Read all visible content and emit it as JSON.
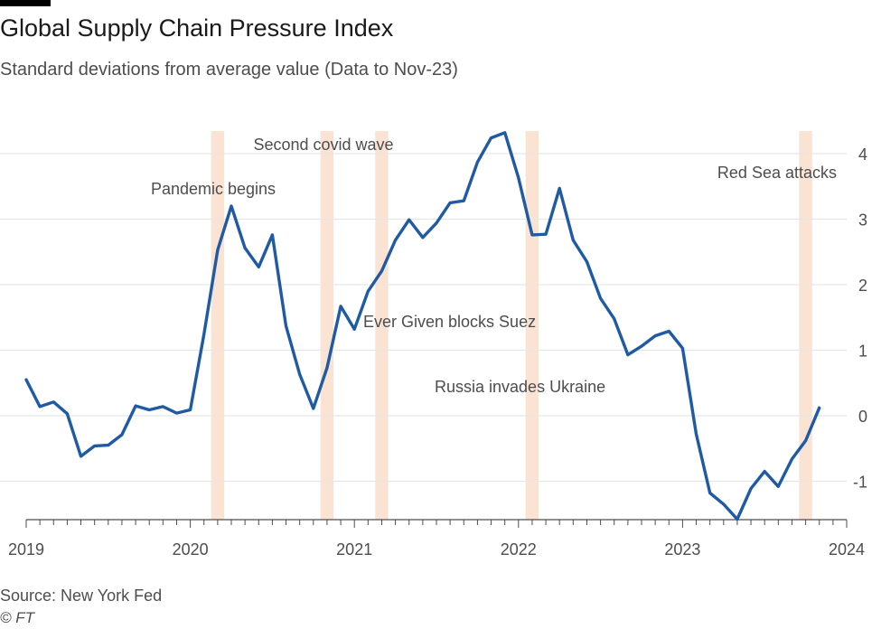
{
  "header": {
    "title": "Global Supply Chain Pressure Index",
    "subtitle": "Standard deviations from average value (Data to Nov-23)"
  },
  "footer": {
    "source": "Source: New York Fed",
    "credit": "© FT"
  },
  "colors": {
    "line": "#1f5aa5",
    "band": "#fbe3d3",
    "grid": "#e6e6e6",
    "axis": "#4d4d4d",
    "text": "#4d4d4d"
  },
  "chart_data": {
    "type": "line",
    "title": "Global Supply Chain Pressure Index",
    "subtitle": "Standard deviations from average value (Data to Nov-23)",
    "xlabel": "",
    "ylabel": "Standard deviations from average value",
    "x_start": "2019-01",
    "xlim": [
      2019,
      2024
    ],
    "ylim": [
      -1.6,
      4.4
    ],
    "y_ticks": [
      -1,
      0,
      1,
      2,
      3,
      4
    ],
    "y_tick_labels": [
      "-1",
      "0",
      "1",
      "2",
      "3",
      "4"
    ],
    "x_ticks": [
      2019,
      2020,
      2021,
      2022,
      2023,
      2024
    ],
    "x_tick_labels": [
      "2019",
      "2020",
      "2021",
      "2022",
      "2023",
      "2024"
    ],
    "grid": true,
    "series": [
      {
        "name": "Global Supply Chain Pressure Index",
        "values": [
          0.55,
          0.14,
          0.21,
          0.03,
          -0.62,
          -0.46,
          -0.45,
          -0.29,
          0.15,
          0.09,
          0.14,
          0.04,
          0.09,
          1.24,
          2.53,
          3.2,
          2.56,
          2.27,
          2.76,
          1.37,
          0.63,
          0.11,
          0.73,
          1.67,
          1.32,
          1.9,
          2.21,
          2.68,
          2.99,
          2.72,
          2.94,
          3.25,
          3.28,
          3.87,
          4.24,
          4.32,
          3.63,
          2.76,
          2.77,
          3.47,
          2.68,
          2.35,
          1.79,
          1.48,
          0.93,
          1.06,
          1.22,
          1.29,
          1.03,
          -0.28,
          -1.18,
          -1.35,
          -1.58,
          -1.11,
          -0.85,
          -1.08,
          -0.66,
          -0.38,
          0.12
        ]
      }
    ],
    "shaded_periods": [
      {
        "label": "Pandemic begins",
        "start": "2020-03",
        "months": 1
      },
      {
        "label": "Second covid wave",
        "start": "2020-11",
        "months": 1
      },
      {
        "label": "Ever Given blocks Suez",
        "start": "2021-03",
        "months": 1
      },
      {
        "label": "Russia invades Ukraine",
        "start": "2022-02",
        "months": 1
      },
      {
        "label": "Red Sea attacks",
        "start": "2023-10",
        "months": 1
      }
    ]
  }
}
